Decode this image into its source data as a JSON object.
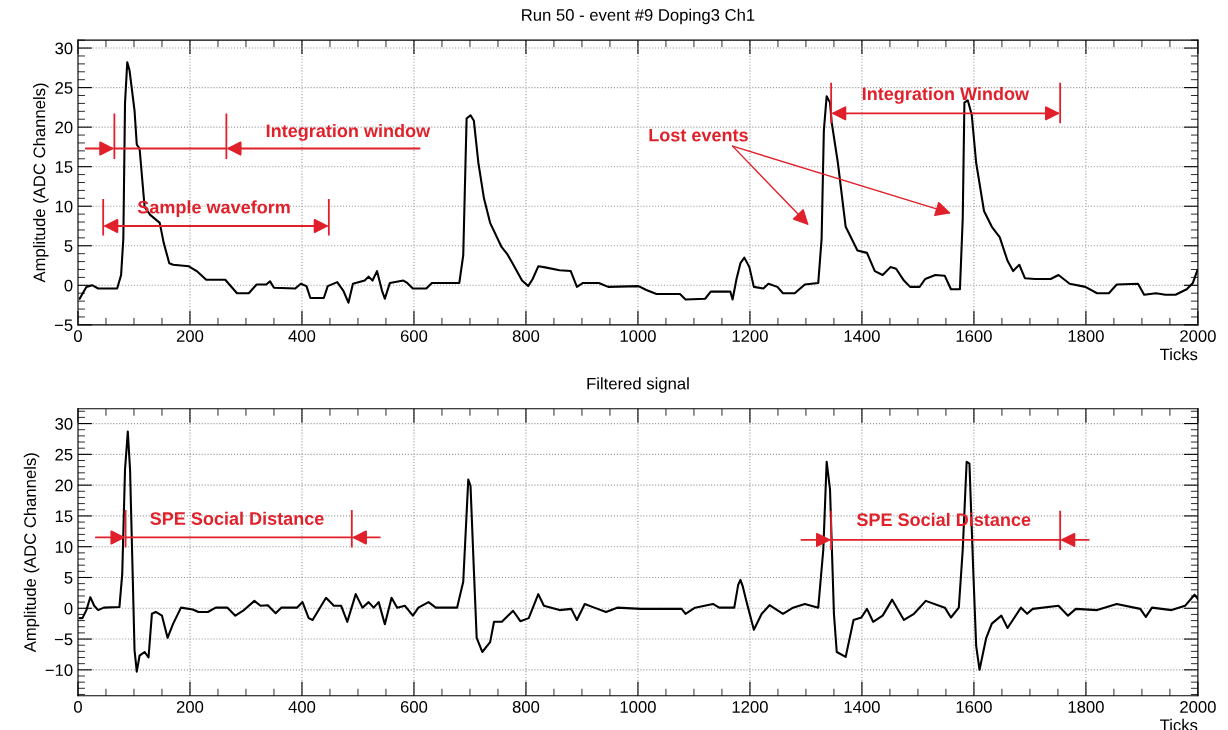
{
  "chart_data": [
    {
      "type": "line",
      "title": "Run 50 - event #9 Doping3 Ch1",
      "xlabel": "Ticks",
      "ylabel": "Amplitude (ADC Channels)",
      "xlim": [
        0,
        2000
      ],
      "ylim": [
        -5,
        31
      ],
      "xticks": [
        0,
        200,
        400,
        600,
        800,
        1000,
        1200,
        1400,
        1600,
        1800,
        2000
      ],
      "yticks": [
        -5,
        0,
        5,
        10,
        15,
        20,
        25,
        30
      ],
      "grid": true,
      "series": [
        {
          "color": "#000000",
          "x": [
            3,
            7,
            15,
            26,
            36,
            70,
            77,
            81,
            84,
            88,
            92,
            101,
            105,
            110,
            119,
            129,
            146,
            153,
            163,
            170,
            198,
            212,
            229,
            263,
            284,
            305,
            319,
            336,
            343,
            350,
            388,
            398,
            408,
            415,
            439,
            446,
            463,
            474,
            483,
            491,
            512,
            519,
            526,
            534,
            543,
            548,
            557,
            581,
            588,
            598,
            622,
            632,
            681,
            688,
            694,
            701,
            707,
            715,
            725,
            736,
            756,
            767,
            776,
            793,
            804,
            812,
            822,
            832,
            860,
            880,
            891,
            902,
            930,
            947,
            1001,
            1015,
            1033,
            1075,
            1085,
            1120,
            1130,
            1165,
            1169,
            1176,
            1183,
            1190,
            1199,
            1207,
            1224,
            1233,
            1249,
            1259,
            1280,
            1298,
            1322,
            1328,
            1332,
            1337,
            1343,
            1346,
            1357,
            1371,
            1392,
            1409,
            1423,
            1437,
            1451,
            1461,
            1475,
            1486,
            1503,
            1513,
            1531,
            1548,
            1559,
            1575,
            1580,
            1583,
            1589,
            1596,
            1604,
            1618,
            1632,
            1646,
            1660,
            1670,
            1681,
            1691,
            1709,
            1737,
            1751,
            1771,
            1799,
            1820,
            1841,
            1855,
            1893,
            1904,
            1925,
            1942,
            1960,
            1980,
            1991,
            1999
          ],
          "values": [
            -1.7,
            -1.2,
            -0.2,
            0,
            -0.4,
            -0.4,
            1.3,
            5.9,
            23,
            28.2,
            27.2,
            22.1,
            17.8,
            17.3,
            9.9,
            8.9,
            7.9,
            5.4,
            2.8,
            2.6,
            2.4,
            1.8,
            0.7,
            0.7,
            -1,
            -1,
            0.1,
            0.1,
            0.5,
            -0.3,
            -0.4,
            0.2,
            -0.1,
            -1.6,
            -1.6,
            -0.1,
            0.4,
            -0.7,
            -2.2,
            0.2,
            0.6,
            1.1,
            0.6,
            1.8,
            -0.7,
            -1.7,
            0.3,
            0.6,
            0.3,
            -0.4,
            -0.4,
            0.3,
            0.3,
            3.8,
            21.1,
            21.5,
            20.8,
            15.5,
            11,
            7.9,
            4.9,
            3.9,
            2.8,
            0.6,
            -0.1,
            0.8,
            2.4,
            2.3,
            1.9,
            1.8,
            -0.2,
            0.3,
            0.3,
            -0.2,
            -0.1,
            -0.6,
            -1.1,
            -1.1,
            -1.8,
            -1.7,
            -0.8,
            -0.8,
            -1.8,
            0.8,
            2.8,
            3.5,
            2.3,
            -0.2,
            -0.4,
            0.2,
            -0.2,
            -1,
            -1,
            0.1,
            0.3,
            5.9,
            19.6,
            23.9,
            23.1,
            20.6,
            15.5,
            7.4,
            4.4,
            4.1,
            1.8,
            1.3,
            2.3,
            2.1,
            0.6,
            -0.2,
            -0.2,
            0.8,
            1.3,
            1.2,
            -0.5,
            -0.5,
            8.4,
            23.1,
            23.4,
            21.6,
            15.5,
            9.4,
            7.4,
            6.1,
            3.1,
            1.8,
            2.6,
            0.9,
            0.8,
            0.8,
            1.3,
            0.2,
            -0.2,
            -1,
            -1,
            0.1,
            0.2,
            -1.2,
            -1,
            -1.2,
            -1.2,
            -0.5,
            0.3,
            1.9
          ]
        }
      ],
      "annotations": [
        "Integration window",
        "Sample waveform",
        "Lost events",
        "Integration Window"
      ]
    },
    {
      "type": "line",
      "title": "Filtered signal",
      "xlabel": "Ticks",
      "ylabel": "Amplitude (ADC Channels)",
      "xlim": [
        0,
        2000
      ],
      "ylim": [
        -14.2,
        32.4
      ],
      "xticks": [
        0,
        200,
        400,
        600,
        800,
        1000,
        1200,
        1400,
        1600,
        1800,
        2000
      ],
      "yticks": [
        -10,
        -5,
        0,
        5,
        10,
        15,
        20,
        25,
        30
      ],
      "grid": true,
      "series": [
        {
          "color": "#000000",
          "x": [
            3,
            8,
            15,
            22,
            29,
            36,
            46,
            74,
            79,
            84,
            89,
            93,
            98,
            101,
            105,
            110,
            119,
            126,
            132,
            139,
            150,
            160,
            170,
            184,
            205,
            215,
            232,
            246,
            267,
            281,
            295,
            315,
            326,
            339,
            353,
            363,
            391,
            401,
            412,
            419,
            443,
            457,
            470,
            481,
            496,
            508,
            519,
            528,
            537,
            548,
            560,
            570,
            584,
            598,
            608,
            626,
            639,
            677,
            688,
            697,
            701,
            707,
            712,
            722,
            736,
            743,
            757,
            777,
            790,
            805,
            822,
            832,
            860,
            881,
            891,
            905,
            922,
            943,
            963,
            1005,
            1040,
            1078,
            1085,
            1102,
            1134,
            1145,
            1172,
            1179,
            1183,
            1187,
            1193,
            1207,
            1221,
            1235,
            1259,
            1277,
            1298,
            1322,
            1331,
            1337,
            1343,
            1350,
            1355,
            1371,
            1385,
            1399,
            1409,
            1420,
            1437,
            1454,
            1475,
            1493,
            1514,
            1548,
            1559,
            1573,
            1580,
            1587,
            1592,
            1599,
            1604,
            1610,
            1622,
            1632,
            1649,
            1660,
            1684,
            1695,
            1705,
            1751,
            1768,
            1782,
            1820,
            1855,
            1897,
            1907,
            1918,
            1953,
            1977,
            1994,
            2000
          ],
          "values": [
            -1.6,
            -1.6,
            -0.3,
            1.8,
            0.4,
            -0.3,
            0.1,
            0.2,
            5.5,
            22.5,
            28.7,
            22.5,
            4.3,
            -6.8,
            -10.3,
            -7.7,
            -7.1,
            -8,
            -0.9,
            -0.6,
            -1.2,
            -4.8,
            -2.5,
            0.1,
            -0.2,
            -0.6,
            -0.6,
            0.1,
            0.1,
            -1.2,
            -0.4,
            1.2,
            0.4,
            0.5,
            -0.8,
            0.1,
            0.1,
            1,
            -1.6,
            -1.9,
            1.7,
            0.4,
            0.4,
            -2.2,
            2.3,
            0.1,
            1,
            0.1,
            1,
            -2.6,
            1.7,
            0.1,
            0.4,
            -1.2,
            0.1,
            1,
            0.1,
            0.1,
            4.3,
            20.9,
            19.9,
            6.2,
            -4.8,
            -7.1,
            -5.5,
            -2.2,
            -2.2,
            -0.4,
            -2.1,
            -1.6,
            2.3,
            0.4,
            -0.3,
            -0.1,
            -1.9,
            0.7,
            0.1,
            -0.6,
            0.1,
            -0.1,
            -0.1,
            -0.1,
            -0.9,
            0.1,
            0.7,
            0.1,
            0.1,
            3.8,
            4.6,
            3.6,
            1.4,
            -3.5,
            -0.9,
            0.5,
            -0.9,
            0.1,
            0.7,
            0.1,
            9.5,
            23.8,
            19.3,
            -0.9,
            -7.1,
            -7.9,
            -1.9,
            -1.5,
            -0.1,
            -2.2,
            -1.2,
            1.4,
            -1.9,
            -0.9,
            1.2,
            0.1,
            -1.5,
            0.1,
            9.5,
            23.8,
            23.5,
            5.6,
            -6.1,
            -10,
            -4.8,
            -2.5,
            -1.2,
            -3.2,
            0.1,
            -0.9,
            -0.1,
            0.4,
            -1.2,
            -0.1,
            -0.3,
            0.7,
            -0.1,
            -1.4,
            0.1,
            -0.3,
            0.4,
            2.2,
            1.5
          ]
        }
      ],
      "annotations": [
        "SPE Social Distance",
        "SPE Social Distance"
      ]
    }
  ]
}
